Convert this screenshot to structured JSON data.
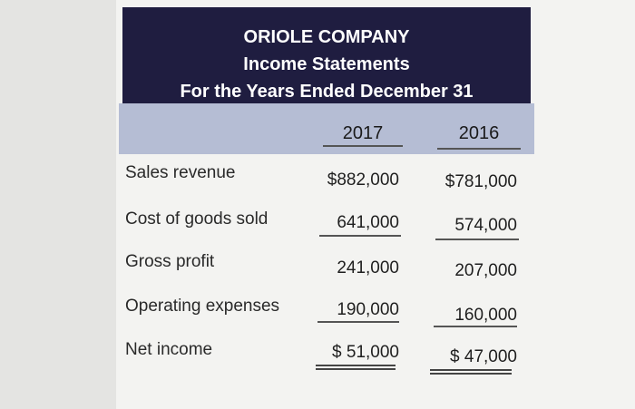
{
  "company": "ORIOLE COMPANY",
  "statement_title": "Income Statements",
  "period": "For the Years Ended December 31",
  "years": [
    "2017",
    "2016"
  ],
  "rows": [
    {
      "label": "Sales revenue",
      "y2017": "$882,000",
      "y2016": "$781,000"
    },
    {
      "label": "Cost of goods sold",
      "y2017": "641,000",
      "y2016": "574,000"
    },
    {
      "label": "Gross profit",
      "y2017": "241,000",
      "y2016": "207,000"
    },
    {
      "label": "Operating expenses",
      "y2017": "190,000",
      "y2016": "160,000"
    },
    {
      "label": "Net income",
      "y2017": "$ 51,000",
      "y2016": "$ 47,000"
    }
  ],
  "colors": {
    "header_bg": "#1f1d40",
    "year_band": "#b5bdd4"
  }
}
